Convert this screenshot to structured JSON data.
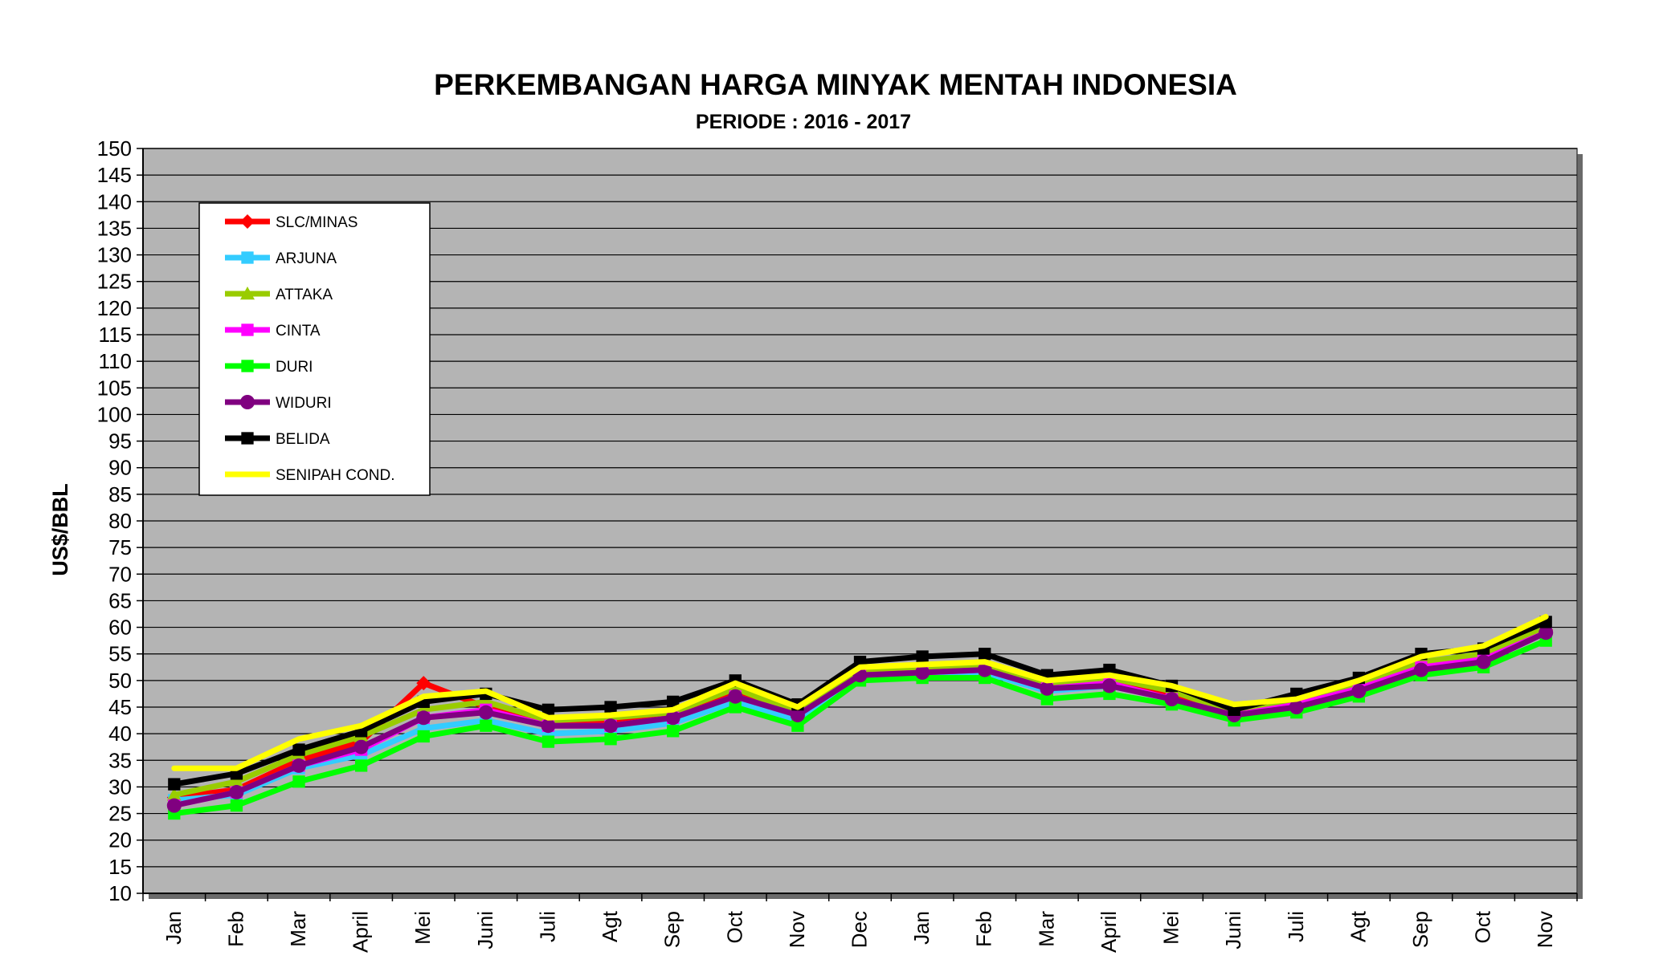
{
  "chart_data": {
    "type": "line",
    "title": "PERKEMBANGAN HARGA MINYAK MENTAH INDONESIA",
    "subtitle": "PERIODE : 2016 - 2017",
    "ylabel": "US$/BBL",
    "xlabel": "",
    "ylim": [
      10,
      150
    ],
    "ytick_step": 5,
    "grid": true,
    "legend_position": "top-left",
    "plot_background": "#b4b4b4",
    "categories": [
      "Jan",
      "Feb",
      "Mar",
      "April",
      "Mei",
      "Juni",
      "Juli",
      "Agt",
      "Sep",
      "Oct",
      "Nov",
      "Dec",
      "Jan",
      "Feb",
      "Mar",
      "April",
      "Mei",
      "Juni",
      "Juli",
      "Agt",
      "Sep",
      "Oct",
      "Nov"
    ],
    "series": [
      {
        "name": "SLC/MINAS",
        "color": "#ff0000",
        "marker": "diamond",
        "values": [
          28.0,
          29.5,
          35.0,
          38.5,
          49.5,
          45.0,
          41.5,
          42.0,
          43.0,
          47.5,
          43.5,
          51.5,
          52.0,
          52.5,
          49.0,
          49.5,
          47.0,
          43.5,
          45.5,
          48.5,
          52.5,
          54.0,
          59.5
        ]
      },
      {
        "name": "ARJUNA",
        "color": "#33ccff",
        "marker": "square",
        "values": [
          27.5,
          28.5,
          33.5,
          36.0,
          41.0,
          42.5,
          40.0,
          40.5,
          42.0,
          46.0,
          42.5,
          50.5,
          51.0,
          51.5,
          48.0,
          49.0,
          46.5,
          43.0,
          45.0,
          48.0,
          52.0,
          53.5,
          59.0
        ]
      },
      {
        "name": "ATTAKA",
        "color": "#99cc00",
        "marker": "triangle",
        "values": [
          28.5,
          31.0,
          36.0,
          39.5,
          44.5,
          46.0,
          42.5,
          43.0,
          44.0,
          48.5,
          44.0,
          52.0,
          52.5,
          53.0,
          49.5,
          50.5,
          48.0,
          44.0,
          46.0,
          49.5,
          53.5,
          55.0,
          60.0
        ]
      },
      {
        "name": "CINTA",
        "color": "#ff00ff",
        "marker": "square",
        "values": [
          26.5,
          29.0,
          34.0,
          37.0,
          43.0,
          44.5,
          41.5,
          41.5,
          43.0,
          47.0,
          43.5,
          51.0,
          51.5,
          52.0,
          48.5,
          49.5,
          46.5,
          43.5,
          45.5,
          48.5,
          52.5,
          54.0,
          59.0
        ]
      },
      {
        "name": "DURI",
        "color": "#00ff00",
        "marker": "square",
        "values": [
          25.0,
          26.5,
          31.0,
          34.0,
          39.5,
          41.5,
          38.5,
          39.0,
          40.5,
          45.0,
          41.5,
          50.0,
          50.5,
          50.5,
          46.5,
          47.5,
          45.5,
          42.5,
          44.0,
          47.0,
          51.0,
          52.5,
          57.5
        ]
      },
      {
        "name": "WIDURI",
        "color": "#800080",
        "marker": "circle",
        "values": [
          26.5,
          29.0,
          34.0,
          37.5,
          43.0,
          44.0,
          41.5,
          41.5,
          43.0,
          47.0,
          43.5,
          51.0,
          51.5,
          52.0,
          48.5,
          49.0,
          46.5,
          43.5,
          45.0,
          48.0,
          52.0,
          53.5,
          59.0
        ]
      },
      {
        "name": "BELIDA",
        "color": "#000000",
        "marker": "square",
        "values": [
          30.5,
          32.5,
          37.0,
          40.5,
          46.0,
          47.5,
          44.5,
          45.0,
          46.0,
          50.0,
          45.5,
          53.5,
          54.5,
          55.0,
          51.0,
          52.0,
          49.0,
          44.5,
          47.5,
          50.5,
          55.0,
          56.0,
          61.0
        ]
      },
      {
        "name": "SENIPAH COND.",
        "color": "#ffff00",
        "marker": "none",
        "values": [
          33.5,
          33.5,
          39.0,
          41.5,
          47.0,
          48.0,
          43.0,
          43.5,
          44.5,
          49.5,
          45.0,
          52.5,
          53.0,
          53.5,
          50.0,
          51.0,
          49.0,
          45.5,
          46.5,
          50.0,
          54.5,
          56.5,
          62.0
        ]
      }
    ]
  }
}
